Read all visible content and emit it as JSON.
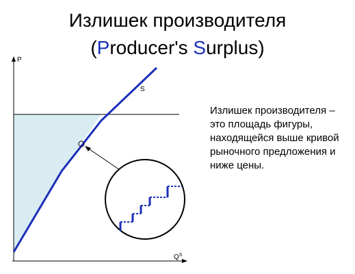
{
  "slide": {
    "title_ru": "Излишек производителя",
    "title_en": {
      "open": "(",
      "p_letter": "P",
      "word1_rest": "roducer's ",
      "s_letter": "S",
      "word2_rest": "urplus",
      "close": ")"
    },
    "description": "Излишек производителя – это площадь фигуры, находящейся выше кривой рыночного предложения и ниже цены."
  },
  "diagram": {
    "y_axis_label": "P",
    "x_axis_label": "Q",
    "x_axis_label_sup": "S",
    "curve_label": "S",
    "colors": {
      "curve": "#1a2fb8",
      "surplus_fill": "#d9ecf1",
      "price_line": "#000000",
      "axes": "#000000"
    }
  }
}
